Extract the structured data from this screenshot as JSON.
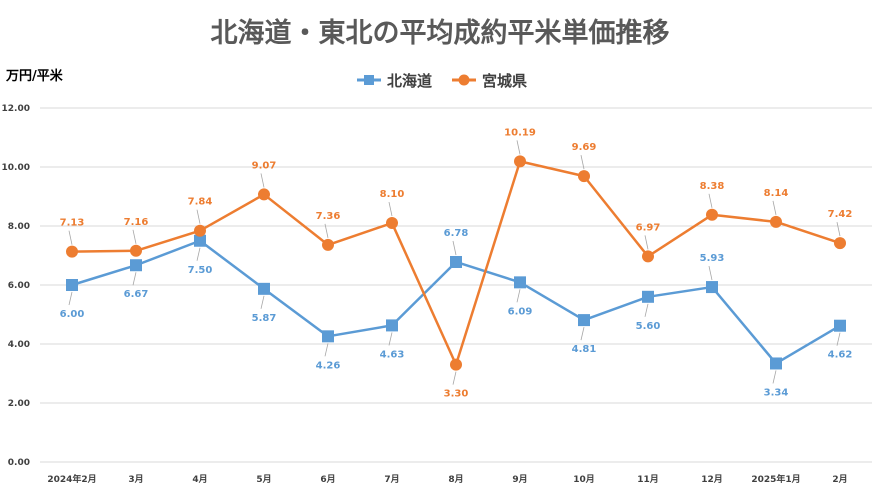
{
  "chart_data": {
    "type": "line",
    "title": "北海道・東北の平均成約平米単価推移",
    "ylabel": "万円/平米",
    "xlabel": "",
    "ylim": [
      0,
      12
    ],
    "yticks": [
      "0.00",
      "2.00",
      "4.00",
      "6.00",
      "8.00",
      "10.00",
      "12.00"
    ],
    "grid": true,
    "legend_position": "top-center",
    "categories": [
      "2024年2月",
      "3月",
      "4月",
      "5月",
      "6月",
      "7月",
      "8月",
      "9月",
      "10月",
      "11月",
      "12月",
      "2025年1月",
      "2月"
    ],
    "series": [
      {
        "name": "北海道",
        "color": "#5B9BD5",
        "marker": "square",
        "values": [
          6.0,
          6.67,
          7.5,
          5.87,
          4.26,
          4.63,
          6.78,
          6.09,
          4.81,
          5.6,
          5.93,
          3.34,
          4.62
        ],
        "labels": [
          "6.00",
          "6.67",
          "7.50",
          "5.87",
          "4.26",
          "4.63",
          "6.78",
          "6.09",
          "4.81",
          "5.60",
          "5.93",
          "3.34",
          "4.62"
        ]
      },
      {
        "name": "宮城県",
        "color": "#ED7D31",
        "marker": "circle",
        "values": [
          7.13,
          7.16,
          7.84,
          9.07,
          7.36,
          8.1,
          3.3,
          10.19,
          9.69,
          6.97,
          8.38,
          8.14,
          7.42
        ],
        "labels": [
          "7.13",
          "7.16",
          "7.84",
          "9.07",
          "7.36",
          "8.10",
          "3.30",
          "10.19",
          "9.69",
          "6.97",
          "8.38",
          "8.14",
          "7.42"
        ]
      }
    ]
  }
}
